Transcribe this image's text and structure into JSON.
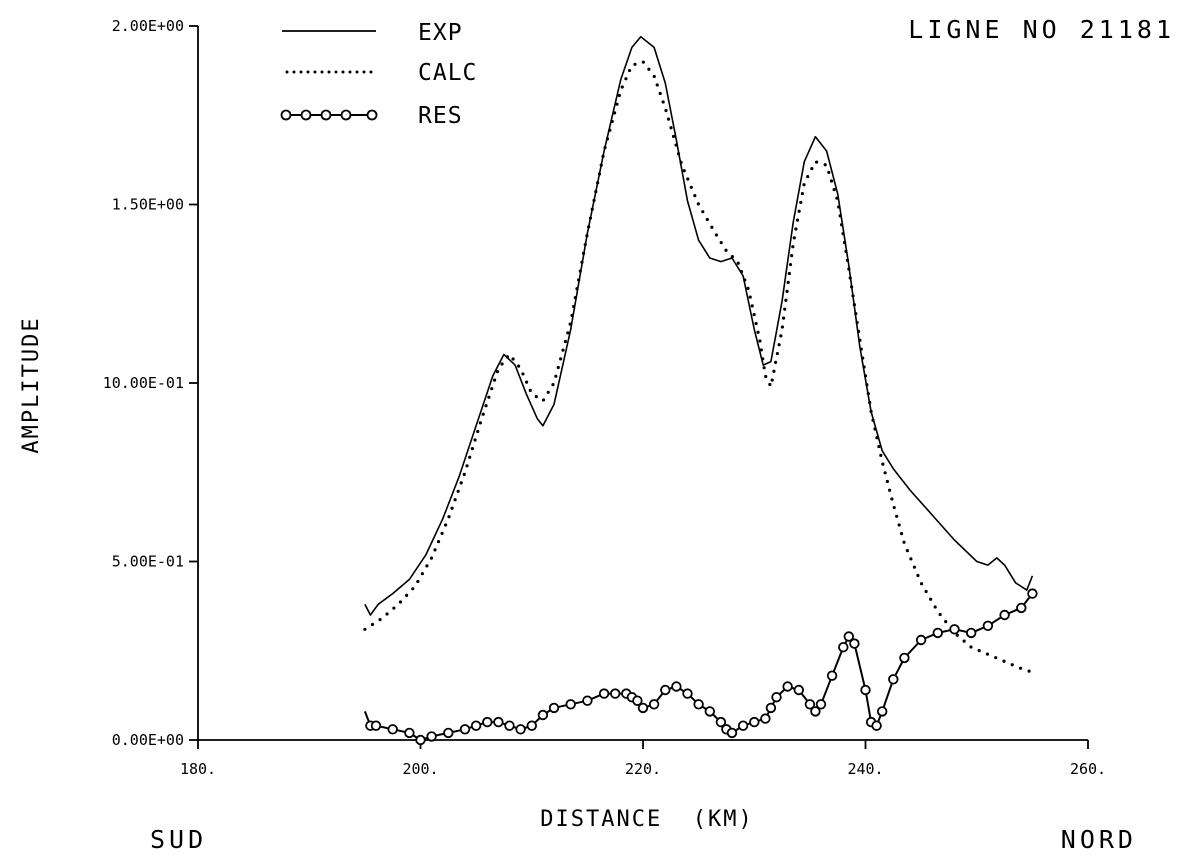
{
  "chart_data": {
    "type": "line",
    "title": "LIGNE NO 21181",
    "xlabel": "DISTANCE  (KM)",
    "ylabel": "AMPLITUDE",
    "left_note": "SUD",
    "right_note": "NORD",
    "xlim": [
      180,
      260
    ],
    "ylim": [
      0,
      2.0
    ],
    "x_ticks": [
      180,
      200,
      220,
      240,
      260
    ],
    "x_tick_labels": [
      "180.",
      "200.",
      "220.",
      "240.",
      "260."
    ],
    "y_ticks": [
      0,
      0.5,
      1.0,
      1.5,
      2.0
    ],
    "y_tick_labels": [
      "0.00E+00",
      "5.00E-01",
      "10.00E-01",
      "1.50E+00",
      "2.00E+00"
    ],
    "grid": false,
    "legend_position": "top-left",
    "series": [
      {
        "name": "EXP",
        "style": "solid",
        "x": [
          195.0,
          195.5,
          196.2,
          197.5,
          199.0,
          200.5,
          202.0,
          203.5,
          205.0,
          206.5,
          207.5,
          208.5,
          209.5,
          210.5,
          211.0,
          212.0,
          213.5,
          215.0,
          216.5,
          218.0,
          219.0,
          219.8,
          221.0,
          222.0,
          223.0,
          224.0,
          225.0,
          226.0,
          227.0,
          228.0,
          229.0,
          230.0,
          230.8,
          231.5,
          232.5,
          233.5,
          234.5,
          235.5,
          236.5,
          237.5,
          238.5,
          239.5,
          240.5,
          241.5,
          242.5,
          244.0,
          246.0,
          248.0,
          250.0,
          251.0,
          251.8,
          252.5,
          253.5,
          254.5,
          255.0
        ],
        "y": [
          0.38,
          0.35,
          0.38,
          0.41,
          0.45,
          0.52,
          0.62,
          0.74,
          0.88,
          1.02,
          1.08,
          1.05,
          0.97,
          0.9,
          0.88,
          0.94,
          1.15,
          1.42,
          1.65,
          1.85,
          1.94,
          1.97,
          1.94,
          1.84,
          1.68,
          1.51,
          1.4,
          1.35,
          1.34,
          1.35,
          1.3,
          1.15,
          1.05,
          1.06,
          1.23,
          1.45,
          1.62,
          1.69,
          1.65,
          1.53,
          1.33,
          1.1,
          0.92,
          0.81,
          0.76,
          0.7,
          0.63,
          0.56,
          0.5,
          0.49,
          0.51,
          0.49,
          0.44,
          0.42,
          0.46
        ]
      },
      {
        "name": "CALC",
        "style": "dotted",
        "x": [
          195.0,
          196.5,
          198.0,
          199.5,
          201.0,
          202.5,
          204.0,
          205.5,
          207.0,
          208.0,
          209.0,
          210.0,
          211.0,
          212.0,
          213.5,
          215.0,
          216.5,
          218.0,
          219.0,
          220.0,
          221.0,
          222.0,
          223.5,
          225.0,
          226.5,
          227.5,
          228.5,
          229.5,
          230.5,
          231.0,
          231.5,
          232.5,
          233.5,
          234.5,
          235.5,
          236.5,
          237.5,
          238.5,
          239.5,
          240.5,
          241.5,
          242.5,
          243.5,
          245.0,
          246.5,
          248.0,
          249.5,
          251.0,
          252.5,
          254.0,
          255.0
        ],
        "y": [
          0.31,
          0.34,
          0.38,
          0.43,
          0.51,
          0.62,
          0.75,
          0.9,
          1.04,
          1.08,
          1.04,
          0.97,
          0.95,
          1.0,
          1.17,
          1.42,
          1.65,
          1.82,
          1.89,
          1.9,
          1.86,
          1.77,
          1.61,
          1.5,
          1.42,
          1.37,
          1.34,
          1.26,
          1.12,
          1.02,
          0.99,
          1.15,
          1.39,
          1.56,
          1.62,
          1.61,
          1.51,
          1.32,
          1.12,
          0.92,
          0.78,
          0.66,
          0.55,
          0.44,
          0.36,
          0.3,
          0.26,
          0.24,
          0.22,
          0.2,
          0.19
        ]
      },
      {
        "name": "RES",
        "style": "solid-circles",
        "x": [
          195.0,
          195.5,
          196.0,
          197.5,
          199.0,
          200.0,
          201.0,
          202.5,
          204.0,
          205.0,
          206.0,
          207.0,
          208.0,
          209.0,
          210.0,
          211.0,
          212.0,
          213.5,
          215.0,
          216.5,
          217.5,
          218.5,
          219.0,
          219.5,
          220.0,
          221.0,
          222.0,
          223.0,
          224.0,
          225.0,
          226.0,
          227.0,
          227.5,
          228.0,
          229.0,
          230.0,
          231.0,
          231.5,
          232.0,
          233.0,
          234.0,
          235.0,
          235.5,
          236.0,
          237.0,
          238.0,
          238.5,
          239.0,
          240.0,
          240.5,
          241.0,
          241.5,
          242.5,
          243.5,
          245.0,
          246.5,
          248.0,
          249.5,
          251.0,
          252.5,
          254.0,
          255.0
        ],
        "y": [
          0.08,
          0.04,
          0.04,
          0.03,
          0.02,
          0.0,
          0.01,
          0.02,
          0.03,
          0.04,
          0.05,
          0.05,
          0.04,
          0.03,
          0.04,
          0.07,
          0.09,
          0.1,
          0.11,
          0.13,
          0.13,
          0.13,
          0.12,
          0.11,
          0.09,
          0.1,
          0.14,
          0.15,
          0.13,
          0.1,
          0.08,
          0.05,
          0.03,
          0.02,
          0.04,
          0.05,
          0.06,
          0.09,
          0.12,
          0.15,
          0.14,
          0.1,
          0.08,
          0.1,
          0.18,
          0.26,
          0.29,
          0.27,
          0.14,
          0.05,
          0.04,
          0.08,
          0.17,
          0.23,
          0.28,
          0.3,
          0.31,
          0.3,
          0.32,
          0.35,
          0.37,
          0.41
        ]
      }
    ]
  }
}
